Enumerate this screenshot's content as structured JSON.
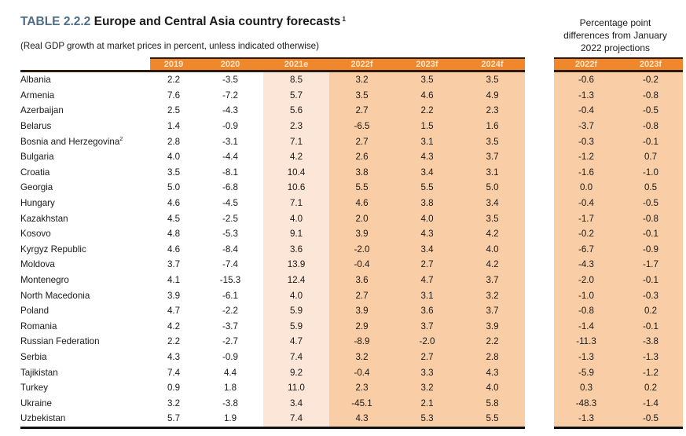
{
  "title": {
    "label": "TABLE 2.2.2",
    "text": "Europe and Central Asia country forecasts",
    "footnote": "1"
  },
  "subtitle": "(Real GDP growth at market prices in percent, unless indicated otherwise)",
  "diff_heading": {
    "line1": "Percentage point",
    "line2": "differences from January",
    "line3": "2022 projections"
  },
  "columns": [
    "2019",
    "2020",
    "2021e",
    "2022f",
    "2023f",
    "2024f"
  ],
  "diff_columns": [
    "2022f",
    "2023f"
  ],
  "colors": {
    "header_orange": "#f0872a",
    "estimate_shade": "#fbe6d7",
    "forecast_shade": "#f9cda5",
    "title_label": "#4f6d86"
  },
  "rows": [
    {
      "country": "Albania",
      "sup": "",
      "values": [
        "2.2",
        "-3.5",
        "8.5",
        "3.2",
        "3.5",
        "3.5"
      ],
      "diffs": [
        "-0.6",
        "-0.2"
      ]
    },
    {
      "country": "Armenia",
      "sup": "",
      "values": [
        "7.6",
        "-7.2",
        "5.7",
        "3.5",
        "4.6",
        "4.9"
      ],
      "diffs": [
        "-1.3",
        "-0.8"
      ]
    },
    {
      "country": "Azerbaijan",
      "sup": "",
      "values": [
        "2.5",
        "-4.3",
        "5.6",
        "2.7",
        "2.2",
        "2.3"
      ],
      "diffs": [
        "-0.4",
        "-0.5"
      ]
    },
    {
      "country": "Belarus",
      "sup": "",
      "values": [
        "1.4",
        "-0.9",
        "2.3",
        "-6.5",
        "1.5",
        "1.6"
      ],
      "diffs": [
        "-3.7",
        "-0.8"
      ]
    },
    {
      "country": "Bosnia and Herzegovina",
      "sup": "2",
      "values": [
        "2.8",
        "-3.1",
        "7.1",
        "2.7",
        "3.1",
        "3.5"
      ],
      "diffs": [
        "-0.3",
        "-0.1"
      ]
    },
    {
      "country": "Bulgaria",
      "sup": "",
      "values": [
        "4.0",
        "-4.4",
        "4.2",
        "2.6",
        "4.3",
        "3.7"
      ],
      "diffs": [
        "-1.2",
        "0.7"
      ]
    },
    {
      "country": "Croatia",
      "sup": "",
      "values": [
        "3.5",
        "-8.1",
        "10.4",
        "3.8",
        "3.4",
        "3.1"
      ],
      "diffs": [
        "-1.6",
        "-1.0"
      ]
    },
    {
      "country": "Georgia",
      "sup": "",
      "values": [
        "5.0",
        "-6.8",
        "10.6",
        "5.5",
        "5.5",
        "5.0"
      ],
      "diffs": [
        "0.0",
        "0.5"
      ]
    },
    {
      "country": "Hungary",
      "sup": "",
      "values": [
        "4.6",
        "-4.5",
        "7.1",
        "4.6",
        "3.8",
        "3.4"
      ],
      "diffs": [
        "-0.4",
        "-0.5"
      ]
    },
    {
      "country": "Kazakhstan",
      "sup": "",
      "values": [
        "4.5",
        "-2.5",
        "4.0",
        "2.0",
        "4.0",
        "3.5"
      ],
      "diffs": [
        "-1.7",
        "-0.8"
      ]
    },
    {
      "country": "Kosovo",
      "sup": "",
      "values": [
        "4.8",
        "-5.3",
        "9.1",
        "3.9",
        "4.3",
        "4.2"
      ],
      "diffs": [
        "-0.2",
        "-0.1"
      ]
    },
    {
      "country": "Kyrgyz Republic",
      "sup": "",
      "values": [
        "4.6",
        "-8.4",
        "3.6",
        "-2.0",
        "3.4",
        "4.0"
      ],
      "diffs": [
        "-6.7",
        "-0.9"
      ]
    },
    {
      "country": "Moldova",
      "sup": "",
      "values": [
        "3.7",
        "-7.4",
        "13.9",
        "-0.4",
        "2.7",
        "4.2"
      ],
      "diffs": [
        "-4.3",
        "-1.7"
      ]
    },
    {
      "country": "Montenegro",
      "sup": "",
      "values": [
        "4.1",
        "-15.3",
        "12.4",
        "3.6",
        "4.7",
        "3.7"
      ],
      "diffs": [
        "-2.0",
        "-0.1"
      ]
    },
    {
      "country": "North Macedonia",
      "sup": "",
      "values": [
        "3.9",
        "-6.1",
        "4.0",
        "2.7",
        "3.1",
        "3.2"
      ],
      "diffs": [
        "-1.0",
        "-0.3"
      ]
    },
    {
      "country": "Poland",
      "sup": "",
      "values": [
        "4.7",
        "-2.2",
        "5.9",
        "3.9",
        "3.6",
        "3.7"
      ],
      "diffs": [
        "-0.8",
        "0.2"
      ]
    },
    {
      "country": "Romania",
      "sup": "",
      "values": [
        "4.2",
        "-3.7",
        "5.9",
        "2.9",
        "3.7",
        "3.9"
      ],
      "diffs": [
        "-1.4",
        "-0.1"
      ]
    },
    {
      "country": "Russian Federation",
      "sup": "",
      "values": [
        "2.2",
        "-2.7",
        "4.7",
        "-8.9",
        "-2.0",
        "2.2"
      ],
      "diffs": [
        "-11.3",
        "-3.8"
      ]
    },
    {
      "country": "Serbia",
      "sup": "",
      "values": [
        "4.3",
        "-0.9",
        "7.4",
        "3.2",
        "2.7",
        "2.8"
      ],
      "diffs": [
        "-1.3",
        "-1.3"
      ]
    },
    {
      "country": "Tajikistan",
      "sup": "",
      "values": [
        "7.4",
        "4.4",
        "9.2",
        "-0.4",
        "3.3",
        "4.3"
      ],
      "diffs": [
        "-5.9",
        "-1.2"
      ]
    },
    {
      "country": "Turkey",
      "sup": "",
      "values": [
        "0.9",
        "1.8",
        "11.0",
        "2.3",
        "3.2",
        "4.0"
      ],
      "diffs": [
        "0.3",
        "0.2"
      ]
    },
    {
      "country": "Ukraine",
      "sup": "",
      "values": [
        "3.2",
        "-3.8",
        "3.4",
        "-45.1",
        "2.1",
        "5.8"
      ],
      "diffs": [
        "-48.3",
        "-1.4"
      ]
    },
    {
      "country": "Uzbekistan",
      "sup": "",
      "values": [
        "5.7",
        "1.9",
        "7.4",
        "4.3",
        "5.3",
        "5.5"
      ],
      "diffs": [
        "-1.3",
        "-0.5"
      ]
    }
  ]
}
